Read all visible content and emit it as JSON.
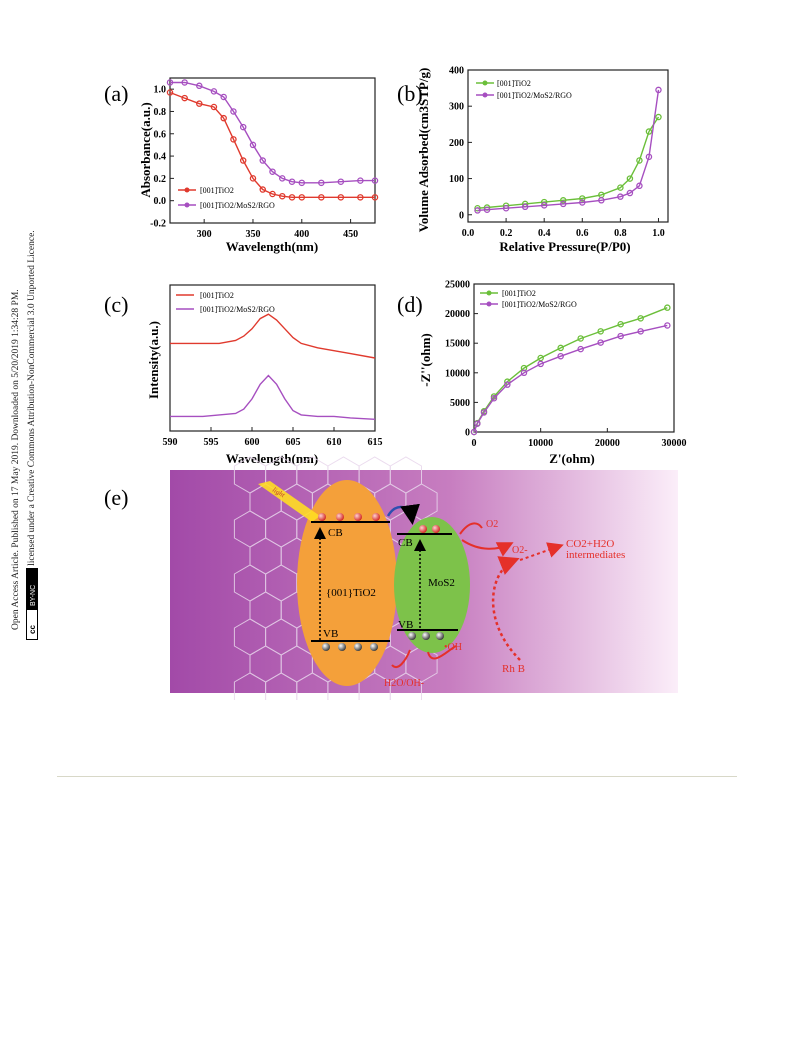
{
  "sidebar": {
    "line1": "Open Access Article. Published on 17 May 2019. Downloaded on 5/20/2019 1:34:28 PM.",
    "line2": "This article is licensed under a Creative Commons Attribution-NonCommercial 3.0 Unported Licence.",
    "badge_cc": "cc",
    "badge_by": "BY-NC"
  },
  "panels": {
    "a": {
      "label": "(a)",
      "xlabel": "Wavelength(nm)",
      "ylabel": "Absorbance(a.u.)",
      "xticks": [
        "300",
        "350",
        "400",
        "450"
      ],
      "yticks": [
        "1.0",
        "0.8",
        "0.6",
        "0.4",
        "0.2",
        "0.0",
        "-0.2"
      ],
      "legend": [
        "[001]TiO2",
        "[001]TiO2/MoS2/RGO"
      ]
    },
    "b": {
      "label": "(b)",
      "xlabel": "Relative Pressure(P/P0)",
      "ylabel": "Volume Adsorbed(cm3STP/g)",
      "xticks": [
        "0.0",
        "0.2",
        "0.4",
        "0.6",
        "0.8",
        "1.0"
      ],
      "yticks": [
        "400",
        "300",
        "200",
        "100",
        "0"
      ],
      "legend": [
        "[001]TiO2",
        "[001]TiO2/MoS2/RGO"
      ]
    },
    "c": {
      "label": "(c)",
      "xlabel": "Wavelength(nm)",
      "ylabel": "Intensity(a.u.)",
      "xticks": [
        "590",
        "595",
        "600",
        "605",
        "610",
        "615"
      ],
      "legend": [
        "[001]TiO2",
        "[001]TiO2/MoS2/RGO"
      ]
    },
    "d": {
      "label": "(d)",
      "xlabel": "Z'(ohm)",
      "ylabel": "-Z''(ohm)",
      "xticks": [
        "0",
        "10000",
        "20000",
        "30000"
      ],
      "yticks": [
        "25000",
        "20000",
        "15000",
        "10000",
        "5000",
        "0"
      ],
      "legend": [
        "[001]TiO2",
        "[001]TiO2/MoS2/RGO"
      ]
    },
    "e": {
      "label": "(e)",
      "light": "light",
      "cb": "CB",
      "vb": "VB",
      "cb2": "CB",
      "vb2": "VB",
      "tio2": "{001}TiO2",
      "mos2": "MoS2",
      "o2a": "O2",
      "o2b": "O2-",
      "products": "CO2+H2O",
      "intermediates": "intermediates",
      "oh": "•OH",
      "h2o": "H2O/OH-",
      "rhb": "Rh B"
    }
  },
  "colors": {
    "red": "#e03a2e",
    "purple": "#a64fc0",
    "green": "#6bbf3a",
    "orange": "#f4a03a",
    "mos2": "#7dc24a",
    "bg_purple": "#a24aa8"
  },
  "chart_data": [
    {
      "panel": "a",
      "type": "line",
      "xlabel": "Wavelength(nm)",
      "ylabel": "Absorbance(a.u.)",
      "xlim": [
        265,
        475
      ],
      "ylim": [
        -0.2,
        1.1
      ],
      "x": [
        265,
        280,
        295,
        310,
        320,
        330,
        340,
        350,
        360,
        370,
        380,
        390,
        400,
        420,
        440,
        460,
        475
      ],
      "series": [
        {
          "name": "[001]TiO2",
          "values": [
            0.97,
            0.92,
            0.87,
            0.84,
            0.74,
            0.55,
            0.36,
            0.2,
            0.1,
            0.06,
            0.04,
            0.03,
            0.03,
            0.03,
            0.03,
            0.03,
            0.03
          ]
        },
        {
          "name": "[001]TiO2/MoS2/RGO",
          "values": [
            1.06,
            1.06,
            1.03,
            0.98,
            0.93,
            0.8,
            0.66,
            0.5,
            0.36,
            0.26,
            0.2,
            0.17,
            0.16,
            0.16,
            0.17,
            0.18,
            0.18
          ]
        }
      ]
    },
    {
      "panel": "b",
      "type": "line",
      "xlabel": "Relative Pressure(P/P0)",
      "ylabel": "Volume Adsorbed(cm3STP/g)",
      "xlim": [
        0,
        1.05
      ],
      "ylim": [
        -20,
        400
      ],
      "x": [
        0.05,
        0.1,
        0.2,
        0.3,
        0.4,
        0.5,
        0.6,
        0.7,
        0.8,
        0.85,
        0.9,
        0.95,
        1.0
      ],
      "series": [
        {
          "name": "[001]TiO2",
          "values": [
            18,
            20,
            25,
            30,
            35,
            40,
            45,
            55,
            75,
            100,
            150,
            230,
            270
          ]
        },
        {
          "name": "[001]TiO2/MoS2/RGO",
          "values": [
            12,
            14,
            18,
            22,
            26,
            30,
            34,
            40,
            50,
            60,
            80,
            160,
            345
          ]
        }
      ]
    },
    {
      "panel": "c",
      "type": "line",
      "xlabel": "Wavelength(nm)",
      "ylabel": "Intensity(a.u.)",
      "xlim": [
        590,
        615
      ],
      "ylim": [
        0,
        1
      ],
      "x": [
        590,
        592,
        594,
        596,
        598,
        599,
        600,
        601,
        602,
        603,
        604,
        605,
        606,
        608,
        610,
        612,
        615
      ],
      "series": [
        {
          "name": "[001]TiO2",
          "values": [
            0.6,
            0.6,
            0.6,
            0.6,
            0.62,
            0.65,
            0.7,
            0.77,
            0.8,
            0.76,
            0.7,
            0.64,
            0.6,
            0.57,
            0.55,
            0.53,
            0.5
          ]
        },
        {
          "name": "[001]TiO2/MoS2/RGO",
          "values": [
            0.1,
            0.1,
            0.1,
            0.11,
            0.12,
            0.15,
            0.22,
            0.32,
            0.38,
            0.32,
            0.22,
            0.14,
            0.11,
            0.1,
            0.1,
            0.09,
            0.08
          ]
        }
      ]
    },
    {
      "panel": "d",
      "type": "line",
      "xlabel": "Z'(ohm)",
      "ylabel": "-Z''(ohm)",
      "xlim": [
        0,
        30000
      ],
      "ylim": [
        0,
        25000
      ],
      "x": [
        0,
        500,
        1500,
        3000,
        5000,
        7500,
        10000,
        13000,
        16000,
        19000,
        22000,
        25000,
        29000
      ],
      "series": [
        {
          "name": "[001]TiO2",
          "values": [
            0,
            1500,
            3500,
            6000,
            8500,
            10800,
            12500,
            14200,
            15800,
            17000,
            18200,
            19200,
            21000
          ]
        },
        {
          "name": "[001]TiO2/MoS2/RGO",
          "values": [
            0,
            1400,
            3300,
            5700,
            8000,
            10000,
            11500,
            12800,
            14000,
            15100,
            16200,
            17000,
            18000
          ]
        }
      ]
    }
  ]
}
